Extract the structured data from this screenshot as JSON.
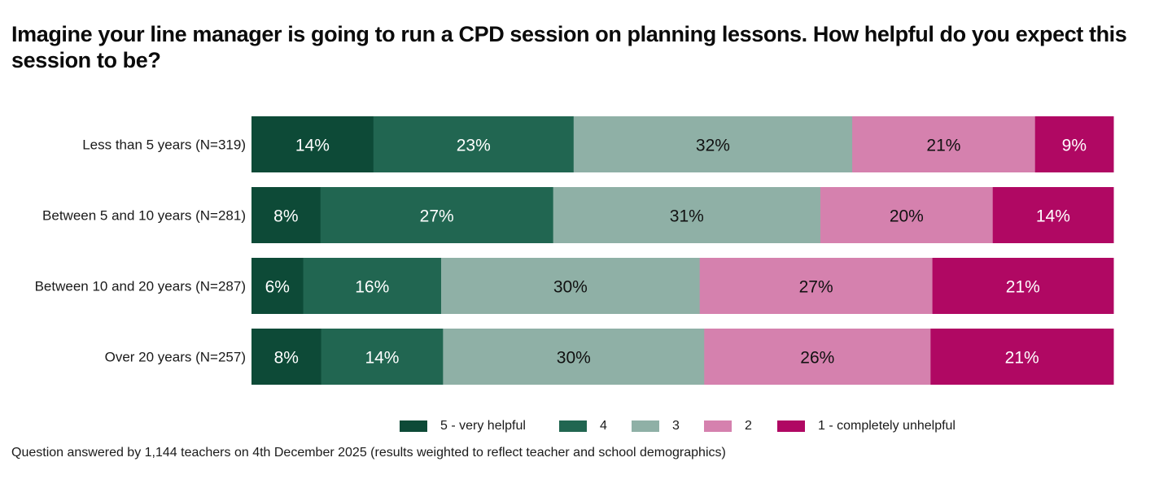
{
  "chart_data": {
    "type": "bar",
    "orientation": "horizontal",
    "stacked": true,
    "normalized": true,
    "title": "Imagine your line manager is going to run a CPD session on planning lessons. How helpful do you expect this session to be?",
    "xlabel": "",
    "ylabel": "",
    "xlim": [
      0,
      100
    ],
    "grid": false,
    "legend_position": "bottom",
    "value_suffix": "%",
    "categories": [
      "Less than 5 years (N=319)",
      "Between 5 and 10 years (N=281)",
      "Between 10 and 20 years (N=287)",
      "Over 20 years (N=257)"
    ],
    "series": [
      {
        "name": "5 - very helpful",
        "color": "#0d4a37",
        "label_color": "#ffffff",
        "values": [
          14,
          8,
          6,
          8
        ]
      },
      {
        "name": "4",
        "color": "#216651",
        "label_color": "#ffffff",
        "values": [
          23,
          27,
          16,
          14
        ]
      },
      {
        "name": "3",
        "color": "#8fb0a6",
        "label_color": "#111111",
        "values": [
          32,
          31,
          30,
          30
        ]
      },
      {
        "name": "2",
        "color": "#d581ae",
        "label_color": "#111111",
        "values": [
          21,
          20,
          27,
          26
        ]
      },
      {
        "name": "1 - completely unhelpful",
        "color": "#b00863",
        "label_color": "#ffffff",
        "values": [
          9,
          14,
          21,
          21
        ]
      }
    ]
  },
  "footnote": "Question answered by 1,144 teachers on 4th December 2025 (results weighted to reflect teacher and school demographics)"
}
